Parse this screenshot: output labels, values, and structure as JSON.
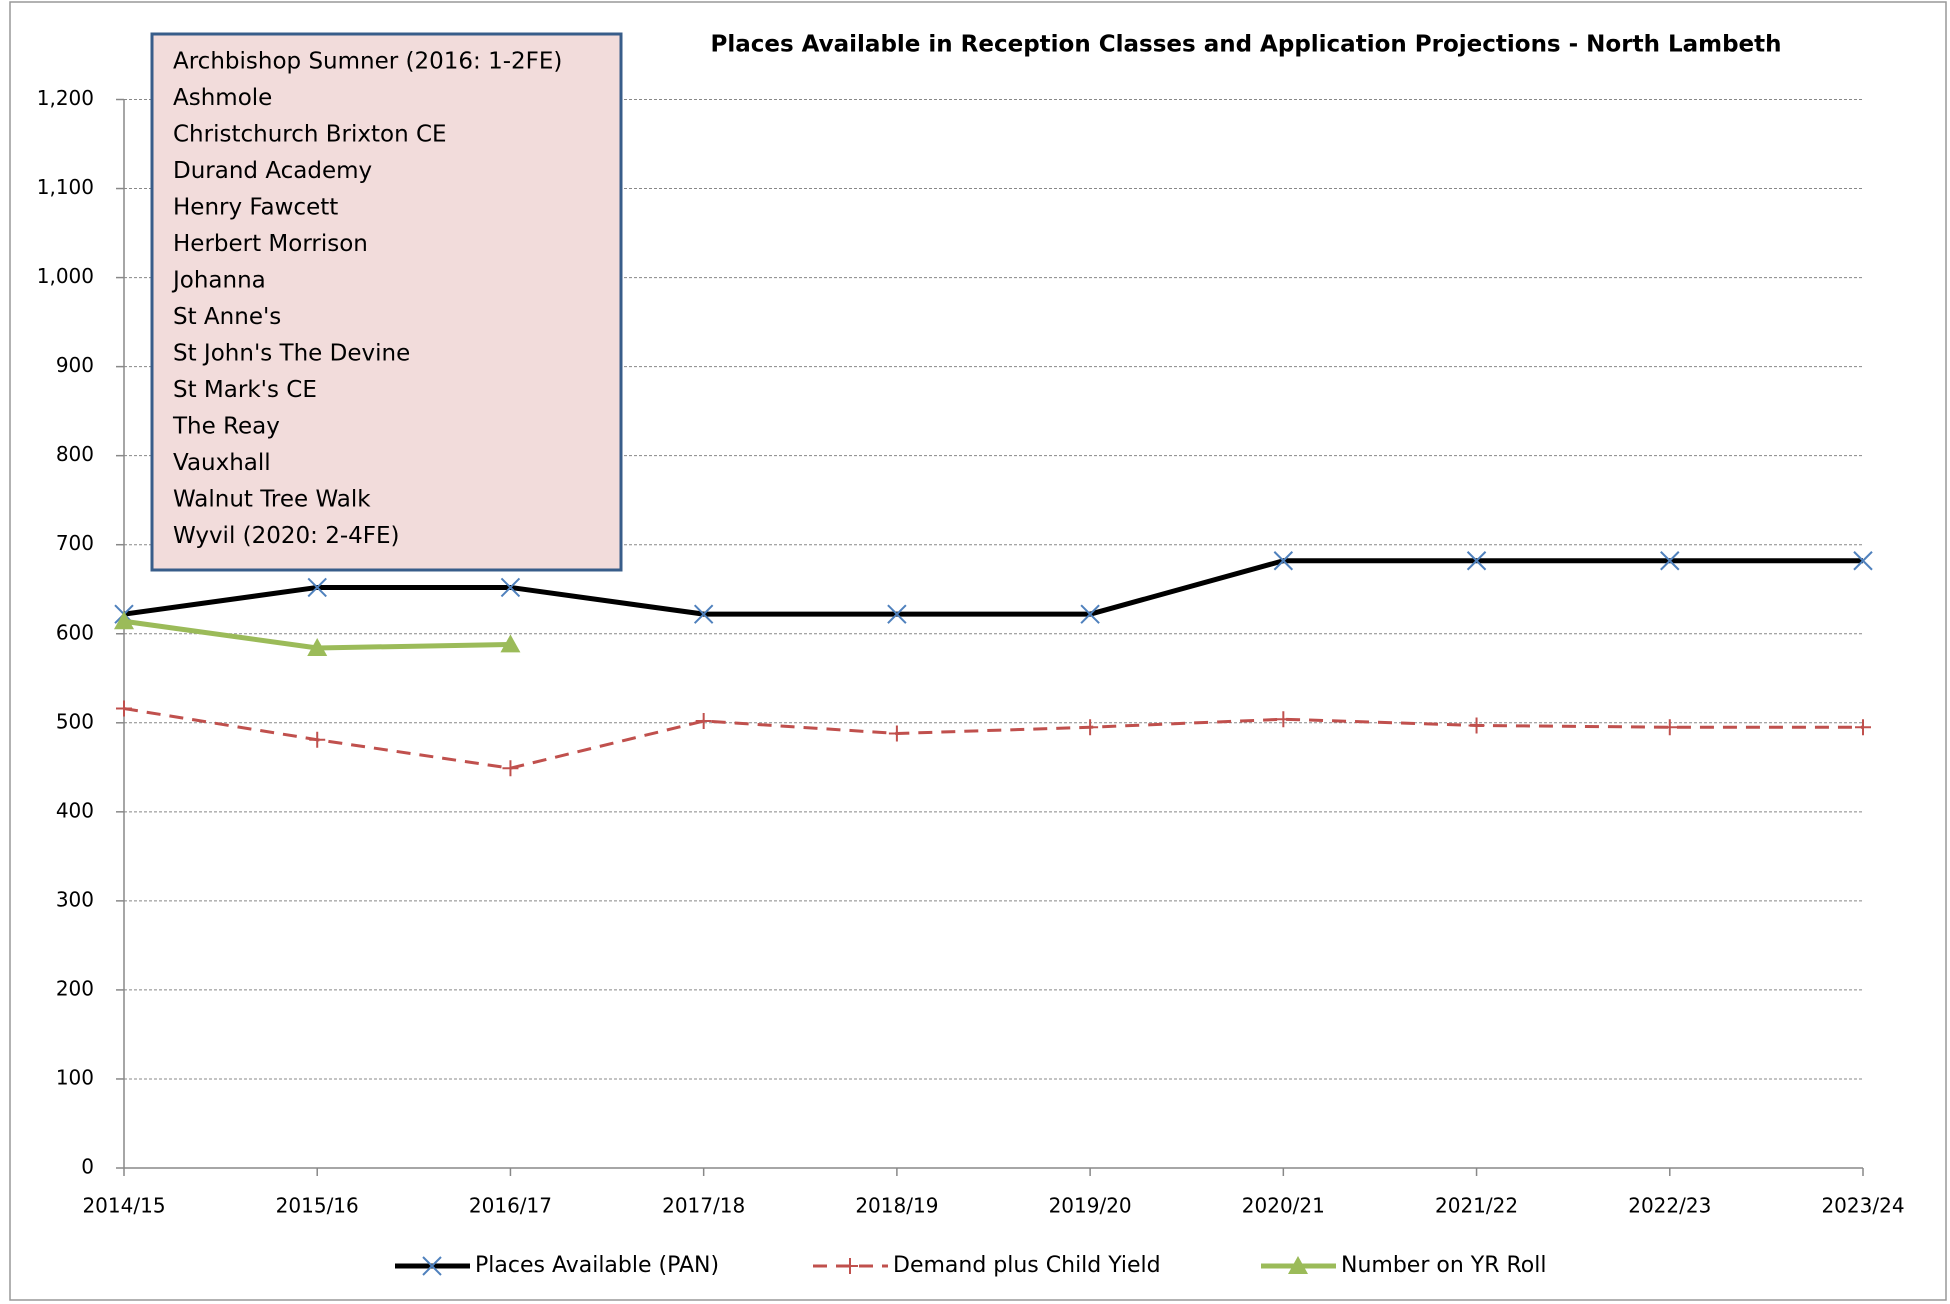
{
  "chart_data": {
    "type": "line",
    "title": "Places Available in Reception Classes and Application Projections - North Lambeth",
    "annotation": {
      "lines": [
        "Archbishop Sumner (2016: 1-2FE)",
        "Ashmole",
        "Christchurch Brixton CE",
        "Durand Academy",
        "Henry Fawcett",
        "Herbert Morrison",
        "Johanna",
        "St Anne's",
        "St John's The Devine",
        "St Mark's CE",
        "The Reay",
        "Vauxhall",
        "Walnut Tree Walk",
        "Wyvil (2020: 2-4FE)"
      ]
    },
    "categories": [
      "2014/15",
      "2015/16",
      "2016/17",
      "2017/18",
      "2018/19",
      "2019/20",
      "2020/21",
      "2021/22",
      "2022/23",
      "2023/24"
    ],
    "series": [
      {
        "name": "Places Available (PAN)",
        "color": "#000000",
        "marker": "x",
        "marker_color": "#4f81bd",
        "dash": false,
        "values": [
          622,
          652,
          652,
          622,
          622,
          622,
          682,
          682,
          682,
          682
        ]
      },
      {
        "name": "Demand plus Child Yield",
        "color": "#c0504d",
        "marker": "+",
        "marker_color": "#c0504d",
        "dash": true,
        "values": [
          516,
          481,
          449,
          502,
          488,
          495,
          504,
          497,
          495,
          495
        ]
      },
      {
        "name": "Number on YR Roll",
        "color": "#9bbb59",
        "marker": "triangle",
        "marker_color": "#9bbb59",
        "dash": false,
        "values": [
          614,
          584,
          588,
          null,
          null,
          null,
          null,
          null,
          null,
          null
        ]
      }
    ],
    "ylim": [
      0,
      1200
    ],
    "yticks": [
      0,
      100,
      200,
      300,
      400,
      500,
      600,
      700,
      800,
      900,
      {
        "value": 1000,
        "label": "1,000"
      },
      {
        "value": 1100,
        "label": "1,100"
      },
      {
        "value": 1200,
        "label": "1,200"
      }
    ],
    "grid": true,
    "legend": "bottom"
  }
}
